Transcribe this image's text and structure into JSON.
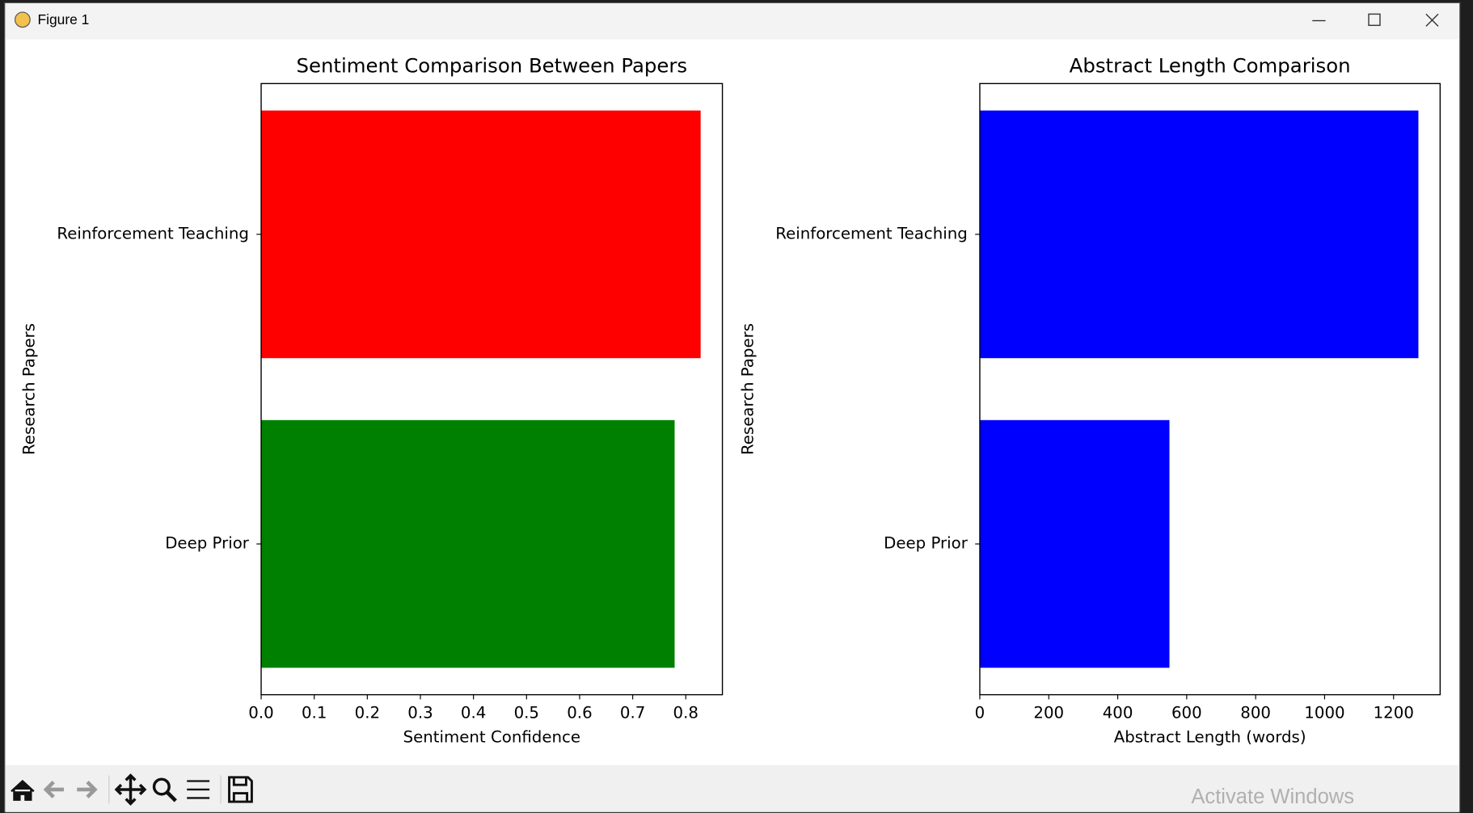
{
  "window": {
    "title": "Figure 1"
  },
  "watermark": "Activate Windows",
  "chart_data": [
    {
      "type": "barh",
      "title": "Sentiment Comparison Between Papers",
      "xlabel": "Sentiment Confidence",
      "ylabel": "Research Papers",
      "categories": [
        "Deep Prior",
        "Reinforcement Teaching"
      ],
      "values": [
        0.779,
        0.828
      ],
      "colors": [
        "#008000",
        "#ff0000"
      ],
      "xlim": [
        0,
        0.869
      ],
      "xticks": [
        {
          "value": 0,
          "label": "0.0"
        },
        0.1,
        0.2,
        0.3,
        0.4,
        0.5,
        0.6,
        0.7,
        0.8
      ]
    },
    {
      "type": "barh",
      "title": "Abstract Length Comparison",
      "xlabel": "Abstract Length (words)",
      "ylabel": "Research Papers",
      "categories": [
        "Deep Prior",
        "Reinforcement Teaching"
      ],
      "values": [
        550,
        1272
      ],
      "colors": [
        "#0000ff",
        "#0000ff"
      ],
      "xlim": [
        0,
        1335
      ],
      "xticks": [
        0,
        200,
        400,
        600,
        800,
        1000,
        1200
      ]
    }
  ]
}
